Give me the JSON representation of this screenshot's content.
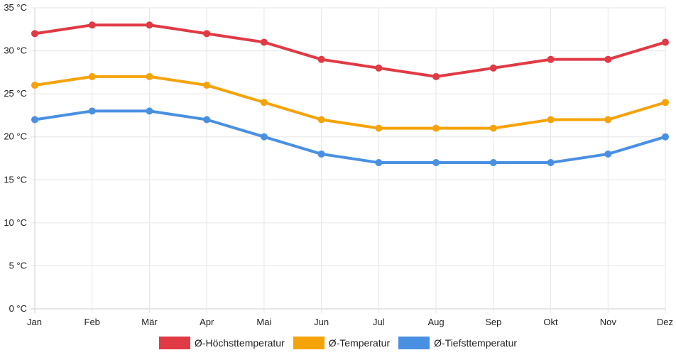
{
  "chart_data": {
    "type": "line",
    "categories": [
      "Jan",
      "Feb",
      "Mär",
      "Apr",
      "Mai",
      "Jun",
      "Jul",
      "Aug",
      "Sep",
      "Okt",
      "Nov",
      "Dez"
    ],
    "y_ticks": [
      "0 °C",
      "5 °C",
      "10 °C",
      "15 °C",
      "20 °C",
      "25 °C",
      "30 °C",
      "35 °C"
    ],
    "ylim": [
      0,
      35
    ],
    "grid": true,
    "legend_position": "bottom",
    "series": [
      {
        "name": "Ø-Höchsttemperatur",
        "color": "#e03a45",
        "values": [
          32,
          33,
          33,
          32,
          31,
          29,
          28,
          27,
          28,
          29,
          29,
          31
        ]
      },
      {
        "name": "Ø-Temperatur",
        "color": "#f5a30a",
        "values": [
          26,
          27,
          27,
          26,
          24,
          22,
          21,
          21,
          21,
          22,
          22,
          24
        ]
      },
      {
        "name": "Ø-Tiefsttemperatur",
        "color": "#4a90e2",
        "values": [
          22,
          23,
          23,
          22,
          20,
          18,
          17,
          17,
          17,
          17,
          18,
          20
        ]
      }
    ]
  }
}
